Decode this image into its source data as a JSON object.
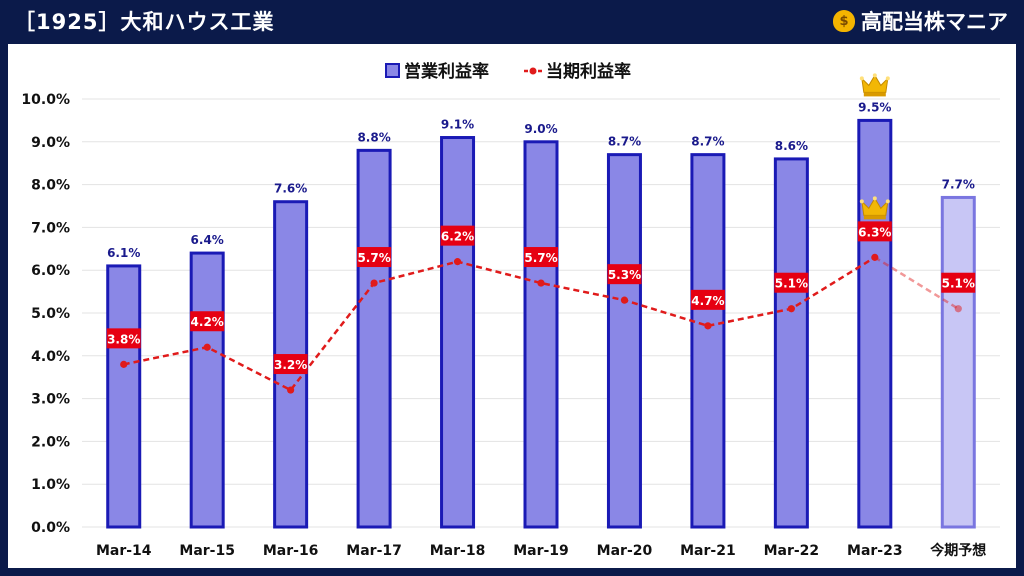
{
  "header": {
    "title": "［1925］大和ハウス工業"
  },
  "brand": {
    "icon": "money-bag-icon",
    "name": "高配当株マニア"
  },
  "colors": {
    "bar_fill": "#8a87e6",
    "bar_stroke": "#1a1ab5",
    "forecast_fill": "#c8c6f5",
    "forecast_stroke": "#7a76e0",
    "line": "#e01b1b",
    "label_bg": "#e60012",
    "crown": "#f2b705",
    "header_bg": "#0b1a4a"
  },
  "chart_data": {
    "type": "bar",
    "categories": [
      "Mar-14",
      "Mar-15",
      "Mar-16",
      "Mar-17",
      "Mar-18",
      "Mar-19",
      "Mar-20",
      "Mar-21",
      "Mar-22",
      "Mar-23",
      "今期予想"
    ],
    "series": [
      {
        "name": "営業利益率",
        "type": "bar",
        "values": [
          6.1,
          6.4,
          7.6,
          8.8,
          9.1,
          9.0,
          8.7,
          8.7,
          8.6,
          9.5,
          7.7
        ],
        "labels": [
          "6.1%",
          "6.4%",
          "7.6%",
          "8.8%",
          "9.1%",
          "9.0%",
          "8.7%",
          "8.7%",
          "8.6%",
          "9.5%",
          "7.7%"
        ]
      },
      {
        "name": "当期利益率",
        "type": "line",
        "values": [
          3.8,
          4.2,
          3.2,
          5.7,
          6.2,
          5.7,
          5.3,
          4.7,
          5.1,
          6.3,
          5.1
        ],
        "labels": [
          "3.8%",
          "4.2%",
          "3.2%",
          "5.7%",
          "6.2%",
          "5.7%",
          "5.3%",
          "4.7%",
          "5.1%",
          "6.3%",
          "5.1%"
        ]
      }
    ],
    "forecast_category": "今期予想",
    "crowns": [
      "Mar-23"
    ],
    "ylim": [
      0,
      10
    ],
    "yticks": [
      "0.0%",
      "1.0%",
      "2.0%",
      "3.0%",
      "4.0%",
      "5.0%",
      "6.0%",
      "7.0%",
      "8.0%",
      "9.0%",
      "10.0%"
    ],
    "legend": "top-center",
    "grid": true,
    "title": "",
    "xlabel": "",
    "ylabel": ""
  }
}
